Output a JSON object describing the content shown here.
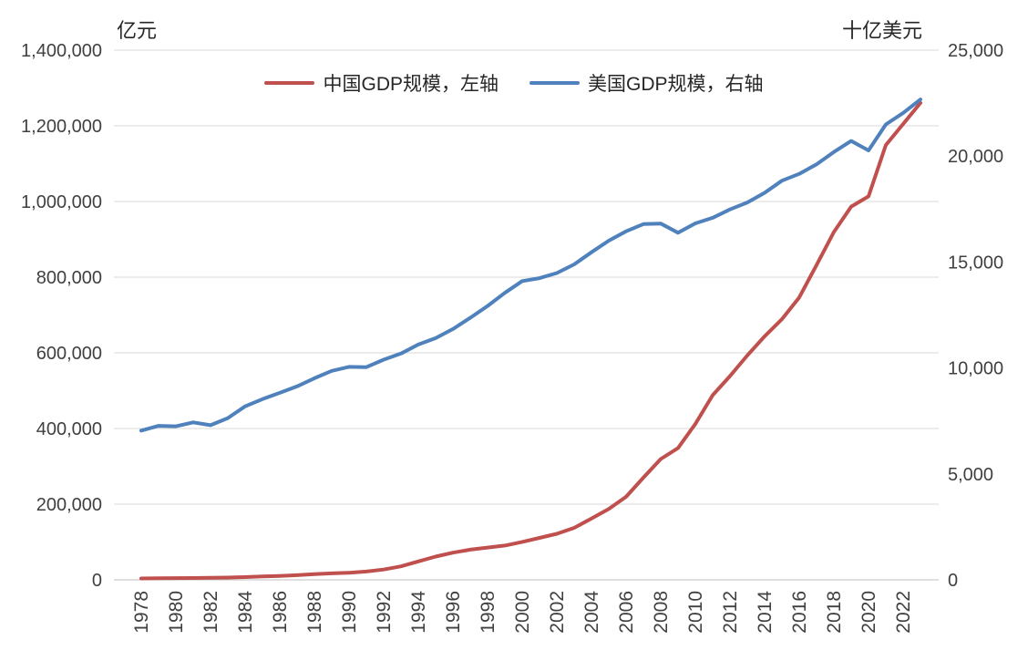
{
  "chart_data": {
    "type": "line",
    "title": "",
    "x": [
      1978,
      1979,
      1980,
      1981,
      1982,
      1983,
      1984,
      1985,
      1986,
      1987,
      1988,
      1989,
      1990,
      1991,
      1992,
      1993,
      1994,
      1995,
      1996,
      1997,
      1998,
      1999,
      2000,
      2001,
      2002,
      2003,
      2004,
      2005,
      2006,
      2007,
      2008,
      2009,
      2010,
      2011,
      2012,
      2013,
      2014,
      2015,
      2016,
      2017,
      2018,
      2019,
      2020,
      2021,
      2022,
      2023
    ],
    "x_tick_labels": [
      "1978",
      "1980",
      "1982",
      "1984",
      "1986",
      "1988",
      "1990",
      "1992",
      "1994",
      "1996",
      "1998",
      "2000",
      "2002",
      "2004",
      "2006",
      "2008",
      "2010",
      "2012",
      "2014",
      "2016",
      "2018",
      "2020",
      "2022"
    ],
    "series": [
      {
        "name": "中国GDP规模，左轴",
        "axis": "left",
        "color": "#C0504D",
        "values": [
          3679,
          4100,
          4588,
          4936,
          5373,
          6021,
          7279,
          9099,
          10376,
          12175,
          15180,
          17180,
          18873,
          22006,
          27195,
          35674,
          48638,
          61340,
          71814,
          79715,
          85196,
          90564,
          100280,
          110863,
          121717,
          137422,
          161840,
          187319,
          219439,
          270092,
          319245,
          348518,
          412119,
          487940,
          538580,
          592963,
          643563,
          688858,
          746395,
          832036,
          919281,
          986515,
          1013567,
          1149237,
          1204724,
          1260582
        ]
      },
      {
        "name": "美国GDP规模，右轴",
        "axis": "right",
        "color": "#4F81BD",
        "values": [
          7042,
          7266,
          7247,
          7431,
          7298,
          7634,
          8187,
          8527,
          8824,
          9131,
          9513,
          9861,
          10050,
          10038,
          10393,
          10678,
          11108,
          11406,
          11837,
          12367,
          12927,
          13546,
          14099,
          14239,
          14479,
          14886,
          15459,
          16008,
          16449,
          16790,
          16814,
          16380,
          16826,
          17088,
          17481,
          17809,
          18265,
          18839,
          19163,
          19612,
          20193,
          20715,
          20267,
          21494,
          22035,
          22671
        ]
      }
    ],
    "left_axis": {
      "label": "亿元",
      "min": 0,
      "max": 1400000,
      "tick_step": 200000
    },
    "right_axis": {
      "label": "十亿美元",
      "min": 0,
      "max": 25000,
      "tick_step": 5000
    },
    "grid": true,
    "legend_position": "top",
    "colors": {
      "grid": "#d9d9d9",
      "axis_line": "#bfbfbf",
      "tick_text": "#404040"
    }
  }
}
